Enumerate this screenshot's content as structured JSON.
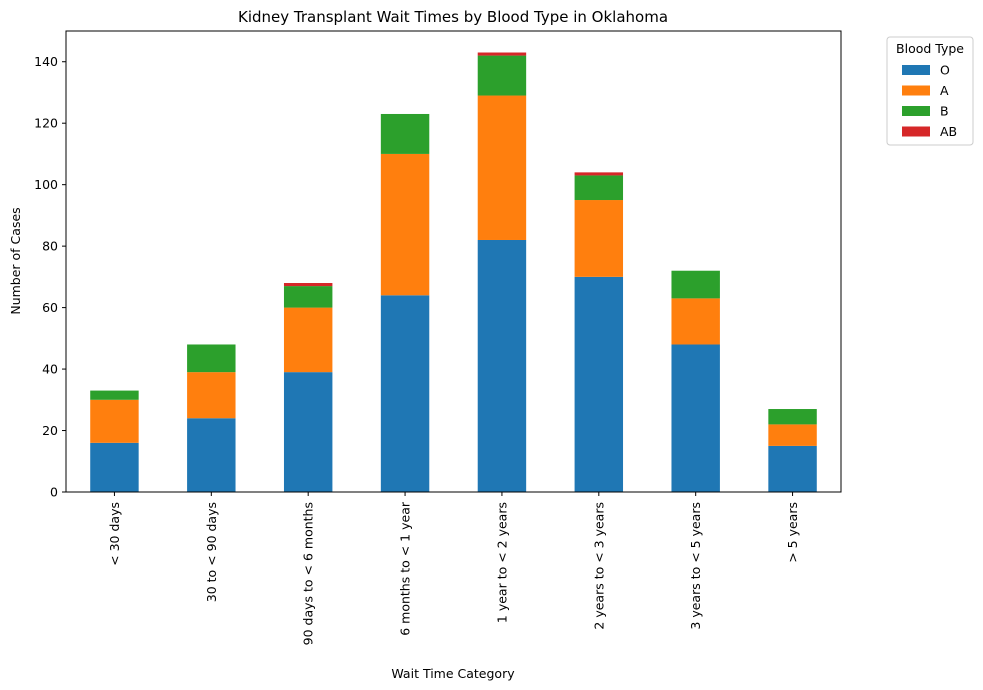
{
  "chart_data": {
    "type": "bar",
    "stacked": true,
    "title": "Kidney Transplant Wait Times by Blood Type in Oklahoma",
    "xlabel": "Wait Time Category",
    "ylabel": "Number of Cases",
    "categories": [
      "< 30 days",
      "30 to < 90 days",
      "90 days to < 6 months",
      "6 months to < 1 year",
      "1 year to < 2 years",
      "2 years to < 3 years",
      "3 years to < 5 years",
      "> 5 years"
    ],
    "series": [
      {
        "name": "O",
        "color": "#1f77b4",
        "values": [
          16,
          24,
          39,
          64,
          82,
          70,
          48,
          15
        ]
      },
      {
        "name": "A",
        "color": "#ff7f0e",
        "values": [
          14,
          15,
          21,
          46,
          47,
          25,
          15,
          7
        ]
      },
      {
        "name": "B",
        "color": "#2ca02c",
        "values": [
          3,
          9,
          7,
          13,
          13,
          8,
          9,
          5
        ]
      },
      {
        "name": "AB",
        "color": "#d62728",
        "values": [
          0,
          0,
          1,
          0,
          1,
          1,
          0,
          0
        ]
      }
    ],
    "ylim": [
      0,
      150
    ],
    "yticks": [
      0,
      20,
      40,
      60,
      80,
      100,
      120,
      140
    ],
    "legend": {
      "title": "Blood Type",
      "placement": "outside-top-right"
    },
    "grid": false
  }
}
